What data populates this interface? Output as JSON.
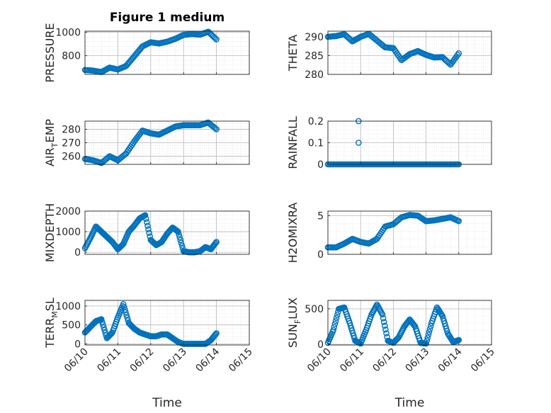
{
  "figure_title": "Figure 1 medium",
  "colors": {
    "marker": "#0072BD",
    "axis": "#262626",
    "grid": "#b8b8b8",
    "minor_grid": "#d9d9d9"
  },
  "chart_data": [
    {
      "type": "scatter",
      "ylabel": "PRESSURE",
      "title": "Figure 1 medium",
      "xlim": [
        "06/10",
        "06/15"
      ],
      "ylim": [
        640,
        1010
      ],
      "yticks": [
        800,
        1000
      ],
      "xticks": [],
      "grid": true,
      "x": [
        "06/10 00:00",
        "06/10 06:00",
        "06/10 12:00",
        "06/10 18:00",
        "06/11 00:00",
        "06/11 06:00",
        "06/11 12:00",
        "06/11 18:00",
        "06/12 00:00",
        "06/12 06:00",
        "06/12 12:00",
        "06/12 18:00",
        "06/13 00:00",
        "06/13 06:00",
        "06/13 12:00",
        "06/13 18:00",
        "06/14 00:00"
      ],
      "y": [
        678,
        672,
        660,
        698,
        682,
        712,
        795,
        880,
        915,
        905,
        920,
        945,
        978,
        985,
        980,
        1005,
        940
      ]
    },
    {
      "type": "scatter",
      "ylabel": "THETA",
      "xlim": [
        "06/10",
        "06/15"
      ],
      "ylim": [
        280,
        291.5
      ],
      "yticks": [
        280,
        285,
        290
      ],
      "xticks": [],
      "grid": true,
      "x": [
        "06/10 00:00",
        "06/10 06:00",
        "06/10 12:00",
        "06/10 18:00",
        "06/11 00:00",
        "06/11 06:00",
        "06/11 12:00",
        "06/11 18:00",
        "06/12 00:00",
        "06/12 06:00",
        "06/12 12:00",
        "06/12 18:00",
        "06/13 00:00",
        "06/13 06:00",
        "06/13 12:00",
        "06/13 18:00",
        "06/14 00:00"
      ],
      "y": [
        290.0,
        290.2,
        290.7,
        288.8,
        290.0,
        290.8,
        289.0,
        287.2,
        287.0,
        283.8,
        285.4,
        286.2,
        285.2,
        284.5,
        284.6,
        282.6,
        285.6
      ]
    },
    {
      "type": "scatter",
      "ylabel": "AIR_TEMP",
      "ylabel_parts": [
        "AIR",
        "T",
        "EMP"
      ],
      "xlim": [
        "06/10",
        "06/15"
      ],
      "ylim": [
        254,
        286
      ],
      "yticks": [
        260,
        270,
        280
      ],
      "xticks": [],
      "grid": true,
      "x": [
        "06/10 00:00",
        "06/10 06:00",
        "06/10 12:00",
        "06/10 18:00",
        "06/11 00:00",
        "06/11 06:00",
        "06/11 12:00",
        "06/11 18:00",
        "06/12 00:00",
        "06/12 06:00",
        "06/12 12:00",
        "06/12 18:00",
        "06/13 00:00",
        "06/13 06:00",
        "06/13 12:00",
        "06/13 18:00",
        "06/14 00:00"
      ],
      "y": [
        258,
        257,
        255,
        260,
        257,
        262,
        271,
        279,
        277,
        276,
        279,
        282,
        283,
        283,
        283,
        285,
        280
      ]
    },
    {
      "type": "scatter",
      "ylabel": "RAINFALL",
      "xlim": [
        "06/10",
        "06/15"
      ],
      "ylim": [
        0,
        0.2
      ],
      "yticks": [
        0,
        0.1,
        0.2
      ],
      "ytick_labels": [
        "0",
        "0.1",
        "0.2"
      ],
      "xticks": [],
      "grid": true,
      "x": [
        "06/10 00:00",
        "06/10 06:00",
        "06/10 12:00",
        "06/10 18:00",
        "06/11 00:00",
        "06/11 06:00",
        "06/11 12:00",
        "06/11 18:00",
        "06/12 00:00",
        "06/12 06:00",
        "06/12 12:00",
        "06/12 18:00",
        "06/13 00:00",
        "06/13 06:00",
        "06/13 12:00",
        "06/13 18:00",
        "06/14 00:00",
        "06/10 22:30",
        "06/10 22:30"
      ],
      "y": [
        0,
        0,
        0,
        0,
        0,
        0,
        0,
        0,
        0,
        0,
        0,
        0,
        0,
        0,
        0,
        0,
        0,
        0.2,
        0.1
      ]
    },
    {
      "type": "scatter",
      "ylabel": "MIXDEPTH",
      "xlim": [
        "06/10",
        "06/15"
      ],
      "ylim": [
        -100,
        2000
      ],
      "yticks": [
        0,
        1000,
        2000
      ],
      "xticks": [],
      "grid": true,
      "x": [
        "06/10 00:00",
        "06/10 04:00",
        "06/10 08:00",
        "06/10 12:00",
        "06/10 16:00",
        "06/10 20:00",
        "06/11 00:00",
        "06/11 04:00",
        "06/11 08:00",
        "06/11 12:00",
        "06/11 16:00",
        "06/11 20:00",
        "06/12 00:00",
        "06/12 04:00",
        "06/12 08:00",
        "06/12 12:00",
        "06/12 16:00",
        "06/12 20:00",
        "06/13 00:00",
        "06/13 04:00",
        "06/13 08:00",
        "06/13 12:00",
        "06/13 16:00",
        "06/13 20:00",
        "06/14 00:00"
      ],
      "y": [
        200,
        700,
        1250,
        1000,
        750,
        500,
        150,
        400,
        1000,
        1300,
        1650,
        1800,
        600,
        350,
        500,
        900,
        1200,
        1000,
        50,
        0,
        0,
        50,
        250,
        150,
        500
      ]
    },
    {
      "type": "scatter",
      "ylabel": "H2OMIXRA",
      "xlim": [
        "06/10",
        "06/15"
      ],
      "ylim": [
        0,
        5.6
      ],
      "yticks": [
        0,
        5
      ],
      "xticks": [],
      "grid": true,
      "x": [
        "06/10 00:00",
        "06/10 06:00",
        "06/10 12:00",
        "06/10 18:00",
        "06/11 00:00",
        "06/11 06:00",
        "06/11 12:00",
        "06/11 18:00",
        "06/12 00:00",
        "06/12 06:00",
        "06/12 12:00",
        "06/12 18:00",
        "06/13 00:00",
        "06/13 06:00",
        "06/13 12:00",
        "06/13 18:00",
        "06/14 00:00"
      ],
      "y": [
        0.9,
        0.9,
        1.4,
        2.0,
        1.6,
        1.4,
        2.0,
        3.6,
        3.9,
        4.8,
        5.1,
        5.0,
        4.3,
        4.4,
        4.6,
        4.8,
        4.3
      ]
    },
    {
      "type": "scatter",
      "ylabel": "TERR_MSL",
      "ylabel_parts": [
        "TERR",
        "M",
        "SL"
      ],
      "xlim": [
        "06/10",
        "06/15"
      ],
      "ylim": [
        -30,
        1150
      ],
      "yticks": [
        0,
        500,
        1000
      ],
      "xticks": [
        "06/10",
        "06/11",
        "06/12",
        "06/13",
        "06/14",
        "06/15"
      ],
      "xlabel": "Time",
      "grid": true,
      "x": [
        "06/10 00:00",
        "06/10 04:00",
        "06/10 08:00",
        "06/10 12:00",
        "06/10 16:00",
        "06/10 20:00",
        "06/11 00:00",
        "06/11 04:00",
        "06/11 08:00",
        "06/11 12:00",
        "06/11 16:00",
        "06/11 20:00",
        "06/12 00:00",
        "06/12 04:00",
        "06/12 08:00",
        "06/12 12:00",
        "06/12 16:00",
        "06/12 20:00",
        "06/13 00:00",
        "06/13 04:00",
        "06/13 08:00",
        "06/13 12:00",
        "06/13 16:00",
        "06/13 20:00",
        "06/14 00:00"
      ],
      "y": [
        300,
        450,
        600,
        650,
        150,
        300,
        700,
        1050,
        550,
        400,
        300,
        250,
        200,
        200,
        250,
        250,
        150,
        50,
        0,
        0,
        0,
        0,
        0,
        100,
        280
      ]
    },
    {
      "type": "scatter",
      "ylabel": "SUN_FLUX",
      "ylabel_parts": [
        "SUN",
        "F",
        "LUX"
      ],
      "xlim": [
        "06/10",
        "06/15"
      ],
      "ylim": [
        -10,
        620
      ],
      "yticks": [
        0,
        500
      ],
      "xticks": [
        "06/10",
        "06/11",
        "06/12",
        "06/13",
        "06/14",
        "06/15"
      ],
      "xlabel": "Time",
      "grid": true,
      "x": [
        "06/10 00:00",
        "06/10 04:00",
        "06/10 08:00",
        "06/10 12:00",
        "06/10 16:00",
        "06/10 20:00",
        "06/11 00:00",
        "06/11 04:00",
        "06/11 08:00",
        "06/11 12:00",
        "06/11 16:00",
        "06/11 20:00",
        "06/12 00:00",
        "06/12 04:00",
        "06/12 08:00",
        "06/12 12:00",
        "06/12 16:00",
        "06/12 20:00",
        "06/13 00:00",
        "06/13 04:00",
        "06/13 08:00",
        "06/13 12:00",
        "06/13 16:00",
        "06/13 20:00",
        "06/14 00:00"
      ],
      "y": [
        20,
        200,
        500,
        520,
        300,
        50,
        10,
        200,
        420,
        560,
        420,
        50,
        20,
        100,
        250,
        350,
        250,
        20,
        10,
        300,
        520,
        400,
        150,
        30,
        60
      ]
    }
  ]
}
